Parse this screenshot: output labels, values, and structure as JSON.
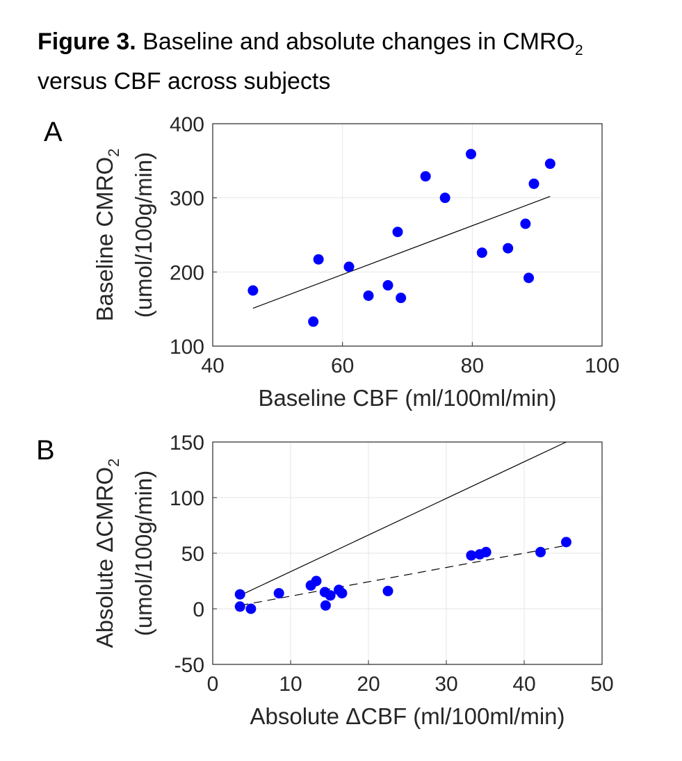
{
  "figure": {
    "title_bold": "Figure 3.",
    "title_line1": " Baseline and absolute changes in CMRO",
    "title_sub": "2",
    "title_line2": "versus CBF across subjects"
  },
  "chart_data": [
    {
      "panel": "A",
      "type": "scatter",
      "xlabel": "Baseline CBF (ml/100ml/min)",
      "ylabel_line1": "Baseline CMRO",
      "ylabel_sub": "2",
      "ylabel_line2": "(umol/100g/min)",
      "xlim": [
        40,
        100
      ],
      "ylim": [
        100,
        400
      ],
      "xticks": [
        40,
        60,
        80,
        100
      ],
      "yticks": [
        100,
        200,
        300,
        400
      ],
      "grid": true,
      "marker_color": "#0000ff",
      "points": [
        {
          "x": 46.2,
          "y": 175
        },
        {
          "x": 55.5,
          "y": 133
        },
        {
          "x": 56.3,
          "y": 217
        },
        {
          "x": 61.0,
          "y": 207
        },
        {
          "x": 64.0,
          "y": 168
        },
        {
          "x": 67.0,
          "y": 182
        },
        {
          "x": 68.5,
          "y": 254
        },
        {
          "x": 69.0,
          "y": 165
        },
        {
          "x": 72.8,
          "y": 329
        },
        {
          "x": 75.8,
          "y": 300
        },
        {
          "x": 79.8,
          "y": 359
        },
        {
          "x": 81.5,
          "y": 226
        },
        {
          "x": 85.5,
          "y": 232
        },
        {
          "x": 88.2,
          "y": 265
        },
        {
          "x": 88.7,
          "y": 192
        },
        {
          "x": 89.5,
          "y": 319
        },
        {
          "x": 92.0,
          "y": 346
        }
      ],
      "lines": [
        {
          "style": "solid",
          "x": [
            46.2,
            92.0
          ],
          "y": [
            151,
            302
          ]
        }
      ]
    },
    {
      "panel": "B",
      "type": "scatter",
      "xlabel": "Absolute ΔCBF (ml/100ml/min)",
      "ylabel_line1": "Absolute ΔCMRO",
      "ylabel_sub": "2",
      "ylabel_line2": "(umol/100g/min)",
      "xlim": [
        0,
        50
      ],
      "ylim": [
        -50,
        150
      ],
      "xticks": [
        0,
        10,
        20,
        30,
        40,
        50
      ],
      "yticks": [
        -50,
        0,
        50,
        100,
        150
      ],
      "grid": true,
      "marker_color": "#0000ff",
      "points": [
        {
          "x": 3.5,
          "y": 13
        },
        {
          "x": 3.5,
          "y": 2
        },
        {
          "x": 4.9,
          "y": 0
        },
        {
          "x": 8.5,
          "y": 14
        },
        {
          "x": 12.6,
          "y": 21
        },
        {
          "x": 13.3,
          "y": 25
        },
        {
          "x": 14.4,
          "y": 15
        },
        {
          "x": 14.5,
          "y": 3
        },
        {
          "x": 15.1,
          "y": 12
        },
        {
          "x": 16.2,
          "y": 17
        },
        {
          "x": 16.6,
          "y": 14
        },
        {
          "x": 22.5,
          "y": 16
        },
        {
          "x": 33.2,
          "y": 48
        },
        {
          "x": 34.3,
          "y": 49
        },
        {
          "x": 35.1,
          "y": 51
        },
        {
          "x": 42.1,
          "y": 51
        },
        {
          "x": 45.4,
          "y": 60
        }
      ],
      "lines": [
        {
          "style": "solid",
          "x": [
            3.5,
            45.4
          ],
          "y": [
            12,
            150
          ]
        },
        {
          "style": "dashed",
          "x": [
            3.5,
            45.4
          ],
          "y": [
            3,
            57
          ]
        }
      ]
    }
  ]
}
